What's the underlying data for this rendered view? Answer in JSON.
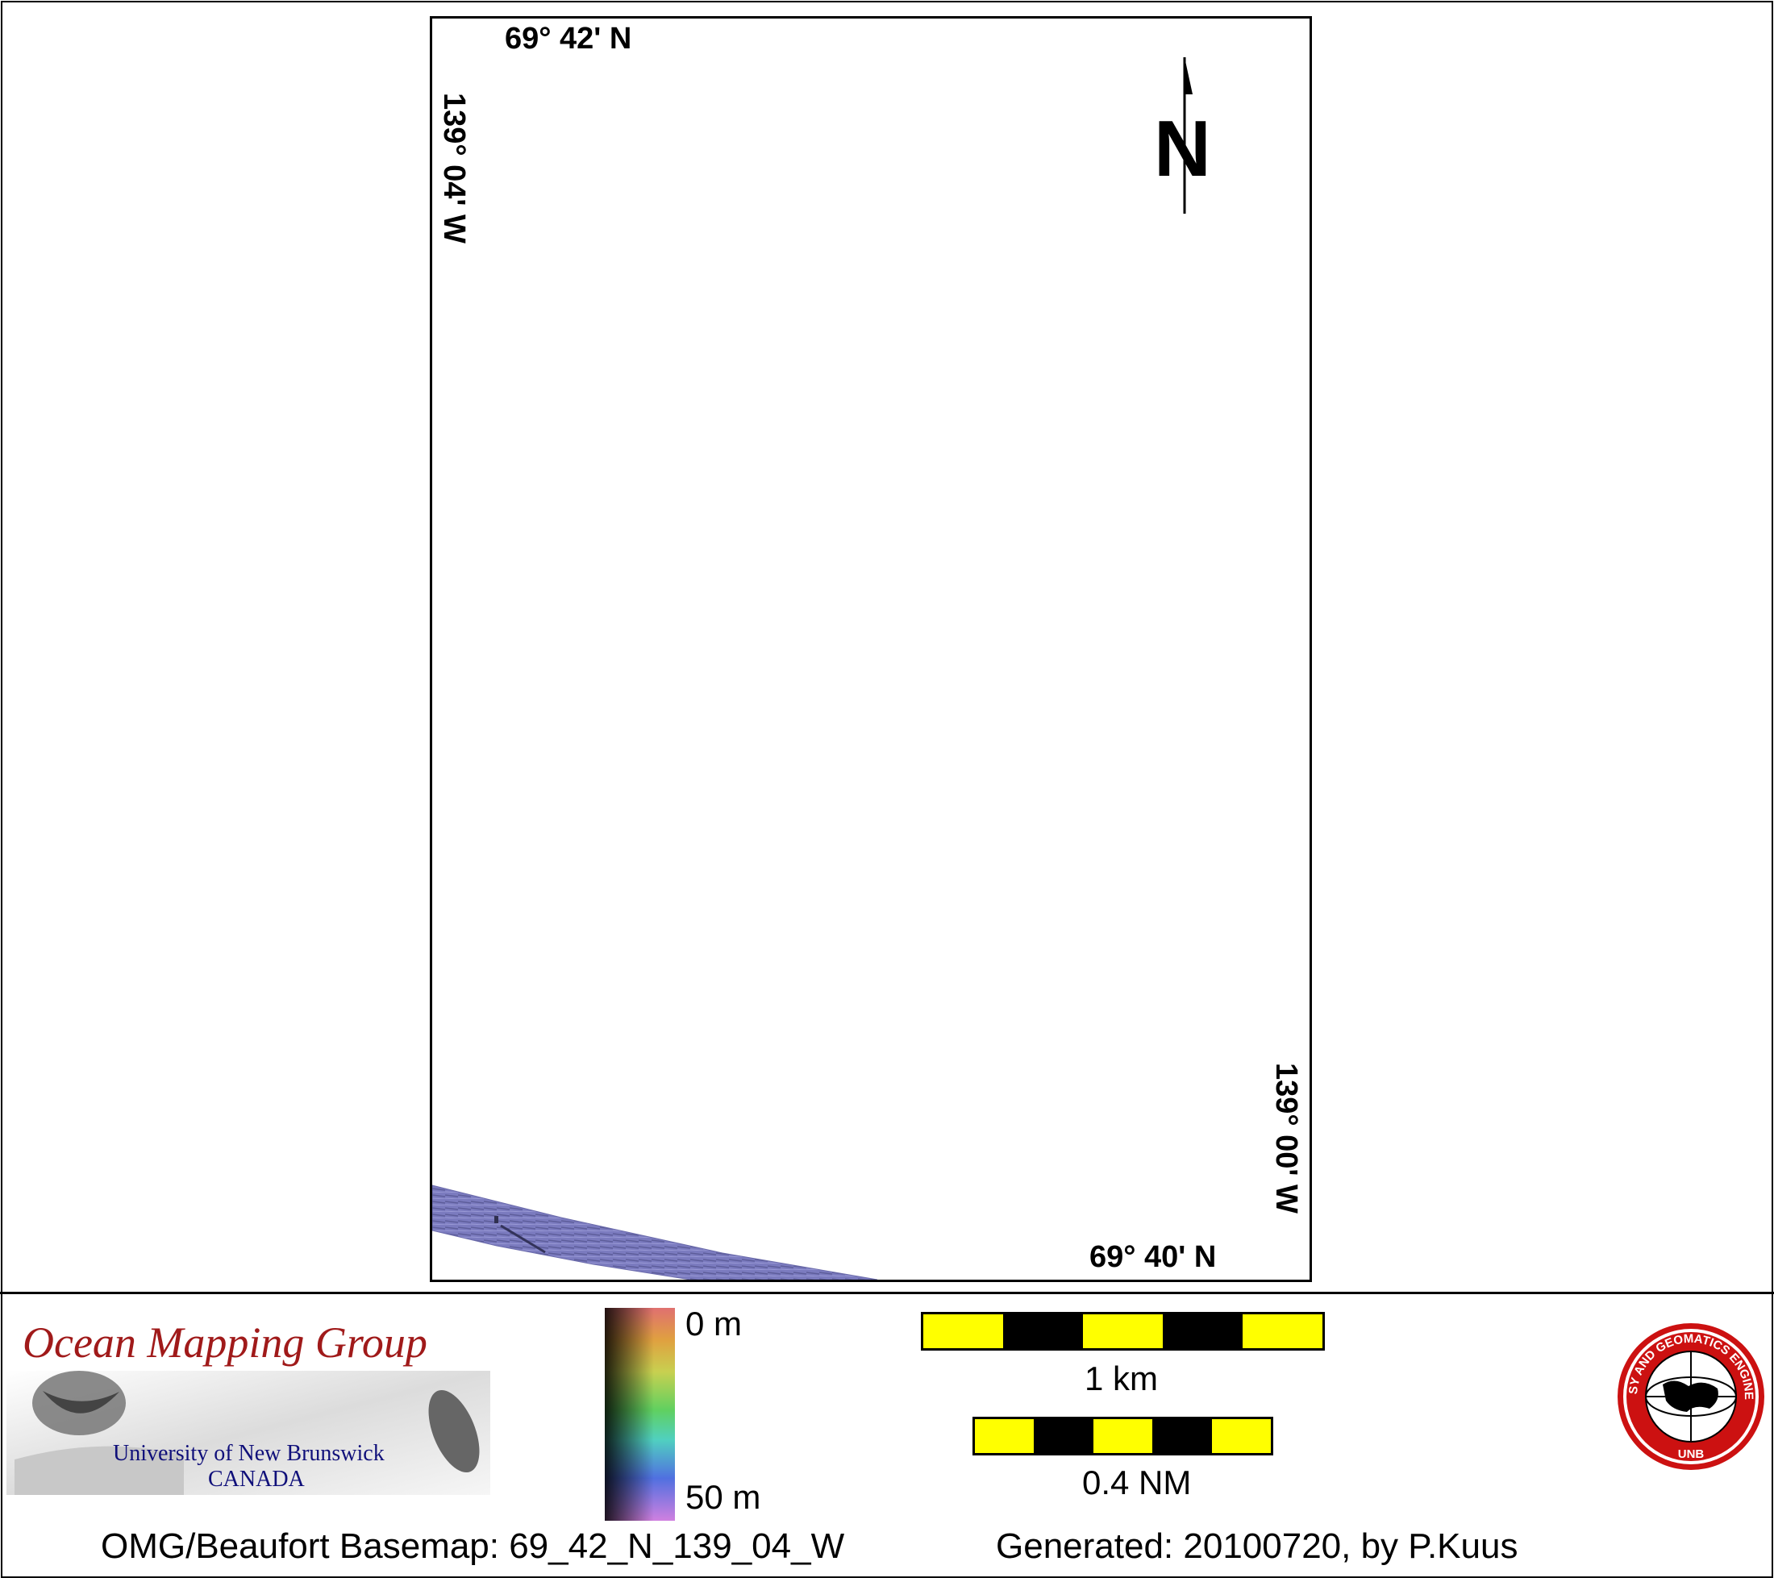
{
  "map": {
    "coords": {
      "top_lat": "69° 42' N",
      "bottom_lat": "69° 40' N",
      "left_lon": "139° 04' W",
      "right_lon": "139° 00' W"
    },
    "north_label": "N",
    "swath_color": "#7b7bbf"
  },
  "legend": {
    "logo": {
      "title": "Ocean Mapping Group",
      "line1": "University of New Brunswick",
      "line2": "CANADA"
    },
    "depth": {
      "top_label": "0 m",
      "bottom_label": "50 m"
    },
    "scales": [
      {
        "label": "1 km",
        "segments": 5
      },
      {
        "label": "0.4 NM",
        "segments": 5
      }
    ],
    "seal_text": "GEODESY AND GEOMATICS ENGINEERING",
    "seal_bottom": "UNB",
    "colors": {
      "scale_fill": "#ffff00",
      "scale_dark": "#000000",
      "seal_red": "#cc1111"
    }
  },
  "footer": {
    "basemap": "OMG/Beaufort Basemap: 69_42_N_139_04_W",
    "generated": "Generated: 20100720, by P.Kuus"
  }
}
